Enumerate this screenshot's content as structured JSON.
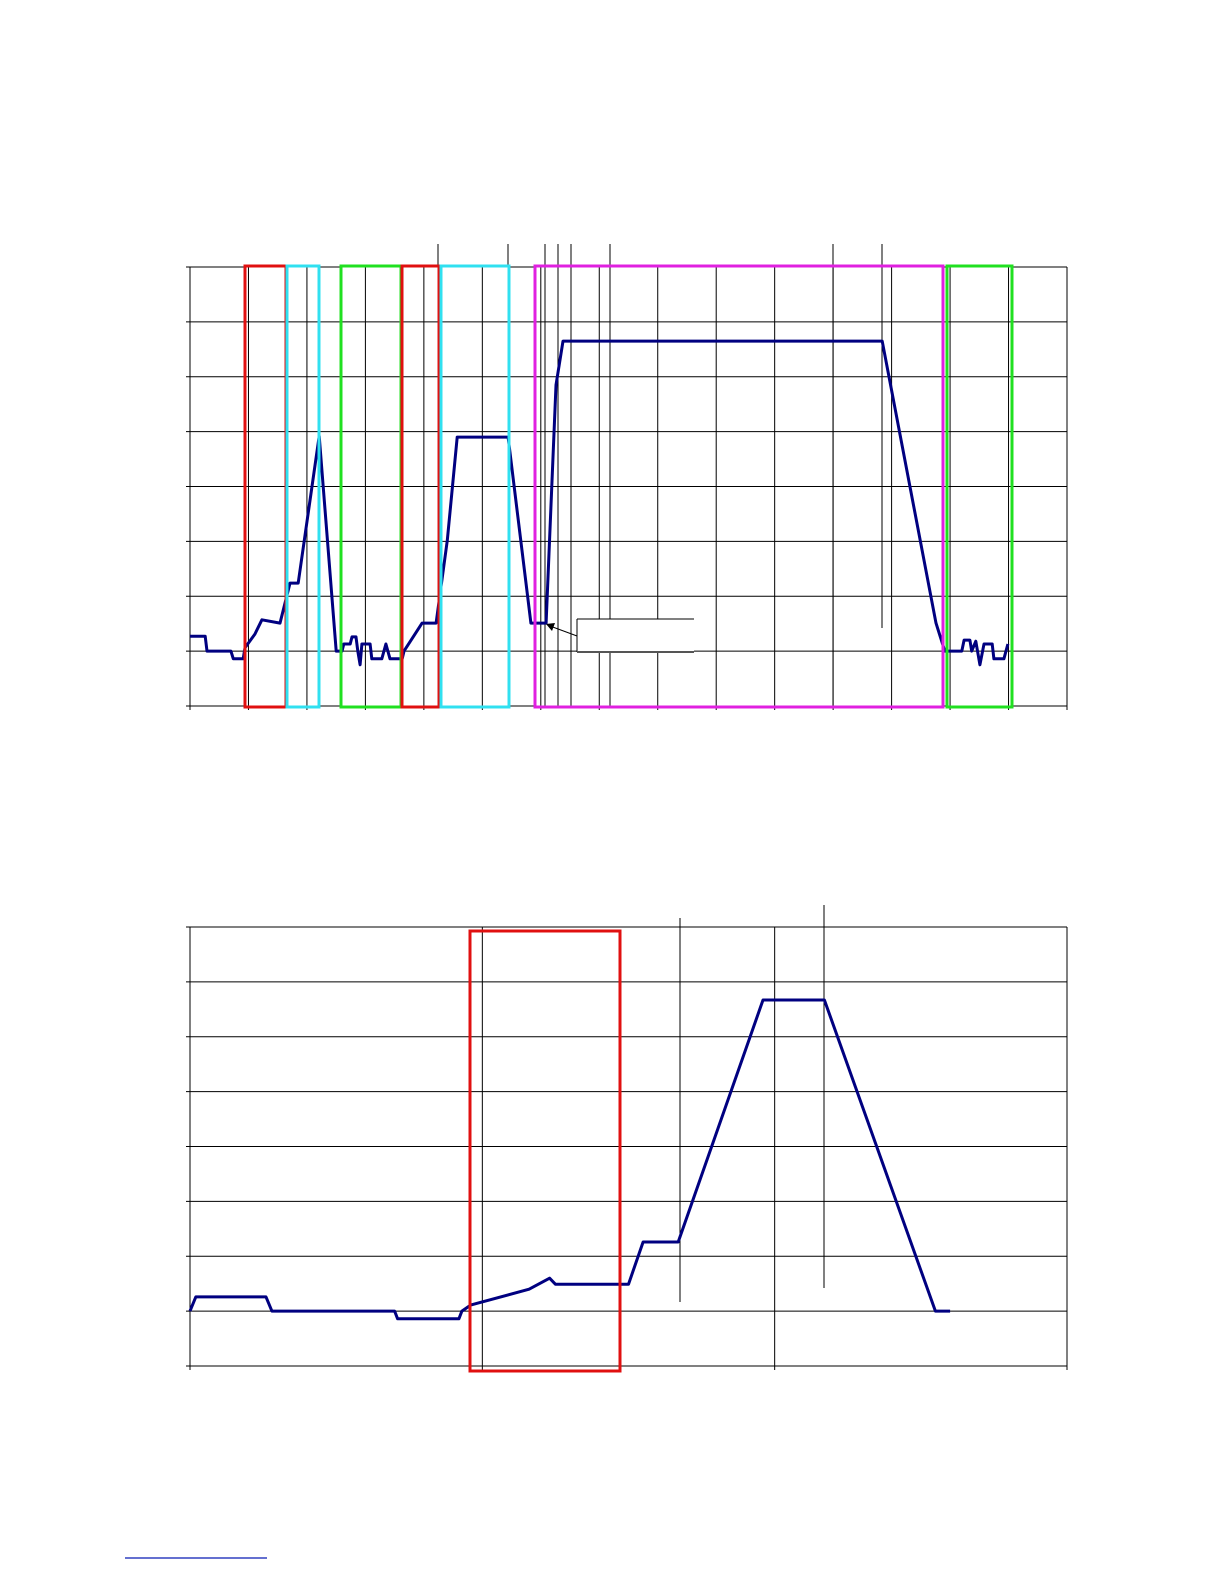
{
  "chart_data": [
    {
      "type": "line",
      "color": "#000080",
      "grid": true,
      "xlim": [
        0,
        15
      ],
      "ylim": [
        0,
        8
      ],
      "xticks": [
        0,
        1,
        2,
        3,
        4,
        5,
        6,
        7,
        8,
        9,
        10,
        11,
        12,
        13,
        14,
        15
      ],
      "yticks": [
        0,
        1,
        2,
        3,
        4,
        5,
        6,
        7,
        8
      ],
      "x": [
        0,
        0.26,
        0.29,
        0.7,
        0.74,
        0.91,
        0.94,
        1.11,
        1.23,
        1.54,
        1.71,
        1.85,
        2.21,
        2.5,
        2.6,
        2.63,
        2.74,
        2.77,
        2.84,
        2.87,
        2.91,
        2.94,
        3.08,
        3.11,
        3.28,
        3.35,
        3.42,
        3.63,
        3.66,
        3.97,
        4.21,
        4.4,
        4.57,
        5.44,
        5.83,
        6.09,
        6.26,
        6.38,
        11.84,
        12.76,
        12.91,
        13.2,
        13.24,
        13.34,
        13.37,
        13.44,
        13.51,
        13.58,
        13.72,
        13.75,
        13.92,
        13.99
      ],
      "values": [
        1.27,
        1.27,
        1.0,
        1.0,
        0.86,
        0.86,
        1.06,
        1.31,
        1.57,
        1.51,
        2.24,
        2.24,
        4.92,
        1.0,
        1.0,
        1.13,
        1.13,
        1.26,
        1.26,
        1.0,
        0.75,
        1.13,
        1.13,
        0.86,
        0.86,
        1.13,
        0.86,
        0.86,
        1.0,
        1.51,
        1.51,
        3.02,
        4.9,
        4.9,
        1.51,
        1.51,
        5.85,
        6.65,
        6.65,
        1.51,
        1.0,
        1.0,
        1.2,
        1.2,
        1.0,
        1.18,
        0.75,
        1.13,
        1.13,
        0.86,
        0.86,
        1.13
      ]
    },
    {
      "type": "line",
      "color": "#000080",
      "grid": true,
      "xlim": [
        0,
        3
      ],
      "ylim": [
        0,
        8
      ],
      "xticks": [
        0,
        1,
        2,
        3
      ],
      "yticks": [
        0,
        1,
        2,
        3,
        4,
        5,
        6,
        7,
        8
      ],
      "x": [
        0,
        0.02,
        0.26,
        0.28,
        0.7,
        0.71,
        0.92,
        0.93,
        0.96,
        1.16,
        1.23,
        1.25,
        1.5,
        1.55,
        1.67,
        1.96,
        2.17,
        2.55,
        2.6
      ],
      "values": [
        1.0,
        1.26,
        1.26,
        1.0,
        1.0,
        0.86,
        0.86,
        1.0,
        1.11,
        1.4,
        1.6,
        1.49,
        1.49,
        2.26,
        2.26,
        6.67,
        6.67,
        1.0,
        1.0
      ]
    }
  ]
}
